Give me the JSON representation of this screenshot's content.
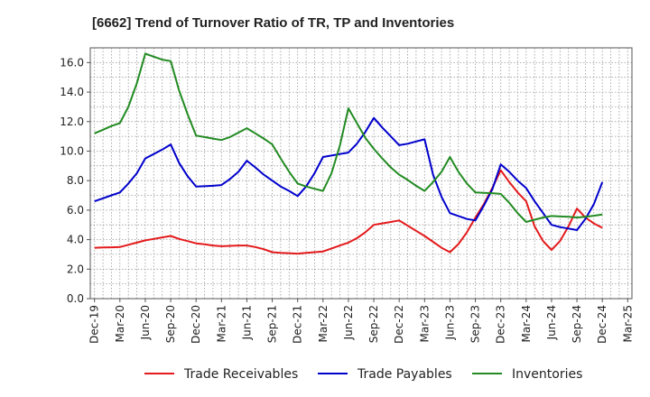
{
  "chart_data": {
    "type": "line",
    "title": "[6662]  Trend of Turnover Ratio of TR, TP and Inventories",
    "xlabel": "",
    "ylabel": "",
    "ylim": [
      0,
      17
    ],
    "yticks": [
      "0.0",
      "2.0",
      "4.0",
      "6.0",
      "8.0",
      "10.0",
      "12.0",
      "14.0",
      "16.0"
    ],
    "categories": [
      "Dec-19",
      "Jan-20",
      "Feb-20",
      "Mar-20",
      "Apr-20",
      "May-20",
      "Jun-20",
      "Jul-20",
      "Aug-20",
      "Sep-20",
      "Oct-20",
      "Nov-20",
      "Dec-20",
      "Jan-21",
      "Feb-21",
      "Mar-21",
      "Apr-21",
      "May-21",
      "Jun-21",
      "Jul-21",
      "Aug-21",
      "Sep-21",
      "Oct-21",
      "Nov-21",
      "Dec-21",
      "Jan-22",
      "Feb-22",
      "Mar-22",
      "Apr-22",
      "May-22",
      "Jun-22",
      "Jul-22",
      "Aug-22",
      "Sep-22",
      "Oct-22",
      "Nov-22",
      "Dec-22",
      "Jan-23",
      "Feb-23",
      "Mar-23",
      "Apr-23",
      "May-23",
      "Jun-23",
      "Jul-23",
      "Aug-23",
      "Sep-23",
      "Oct-23",
      "Nov-23",
      "Dec-23",
      "Jan-24",
      "Feb-24",
      "Mar-24",
      "Apr-24",
      "May-24",
      "Jun-24",
      "Jul-24",
      "Aug-24",
      "Sep-24",
      "Oct-24",
      "Nov-24",
      "Dec-24",
      "Jan-25",
      "Feb-25",
      "Mar-25"
    ],
    "tick_labels": [
      "Dec-19",
      "Mar-20",
      "Jun-20",
      "Sep-20",
      "Dec-20",
      "Mar-21",
      "Jun-21",
      "Sep-21",
      "Dec-21",
      "Mar-22",
      "Jun-22",
      "Sep-22",
      "Dec-22",
      "Mar-23",
      "Jun-23",
      "Sep-23",
      "Dec-23",
      "Mar-24",
      "Jun-24",
      "Sep-24",
      "Dec-24",
      "Mar-25"
    ],
    "grid": true,
    "legend_position": "bottom",
    "series": [
      {
        "name": "Trade Receivables",
        "color": "#e41a1c",
        "values": [
          3.45,
          3.47,
          3.48,
          3.5,
          3.65,
          3.8,
          3.95,
          4.05,
          4.15,
          4.25,
          4.05,
          3.9,
          3.75,
          3.68,
          3.6,
          3.55,
          3.58,
          3.6,
          3.6,
          3.5,
          3.35,
          3.15,
          3.1,
          3.08,
          3.05,
          3.1,
          3.15,
          3.2,
          3.4,
          3.6,
          3.8,
          4.1,
          4.5,
          5.0,
          5.1,
          5.2,
          5.3,
          4.95,
          4.6,
          4.25,
          3.85,
          3.45,
          3.15,
          3.7,
          4.5,
          5.5,
          6.4,
          7.5,
          8.7,
          7.9,
          7.2,
          6.6,
          4.9,
          3.9,
          3.3,
          3.9,
          4.9,
          6.1,
          5.5,
          5.1,
          4.8,
          null,
          null,
          null
        ]
      },
      {
        "name": "Trade Payables",
        "color": "#0000cc",
        "values": [
          6.6,
          6.8,
          7.0,
          7.2,
          7.8,
          8.5,
          9.5,
          9.8,
          10.1,
          10.45,
          9.2,
          8.3,
          7.6,
          7.62,
          7.65,
          7.7,
          8.1,
          8.6,
          9.35,
          8.9,
          8.4,
          8.0,
          7.6,
          7.3,
          6.95,
          7.6,
          8.5,
          9.6,
          9.7,
          9.8,
          9.9,
          10.5,
          11.3,
          12.25,
          11.6,
          11.0,
          10.4,
          10.5,
          10.65,
          10.8,
          8.4,
          6.9,
          5.8,
          5.6,
          5.4,
          5.3,
          6.3,
          7.4,
          9.1,
          8.6,
          8.0,
          7.5,
          6.6,
          5.8,
          5.0,
          4.85,
          4.75,
          4.65,
          5.4,
          6.4,
          7.9,
          null,
          null,
          null
        ]
      },
      {
        "name": "Inventories",
        "color": "#228b22",
        "values": [
          11.2,
          11.45,
          11.7,
          11.9,
          13.0,
          14.6,
          16.6,
          16.4,
          16.2,
          16.1,
          14.1,
          12.5,
          11.05,
          10.95,
          10.85,
          10.75,
          10.95,
          11.25,
          11.55,
          11.2,
          10.85,
          10.45,
          9.5,
          8.6,
          7.8,
          7.6,
          7.45,
          7.3,
          8.5,
          10.4,
          12.9,
          11.9,
          10.9,
          10.15,
          9.5,
          8.9,
          8.4,
          8.05,
          7.65,
          7.3,
          7.9,
          8.6,
          9.6,
          8.6,
          7.8,
          7.2,
          7.17,
          7.15,
          7.1,
          6.5,
          5.8,
          5.2,
          5.35,
          5.5,
          5.6,
          5.57,
          5.55,
          5.5,
          5.55,
          5.62,
          5.7,
          null,
          null,
          null
        ]
      }
    ]
  }
}
